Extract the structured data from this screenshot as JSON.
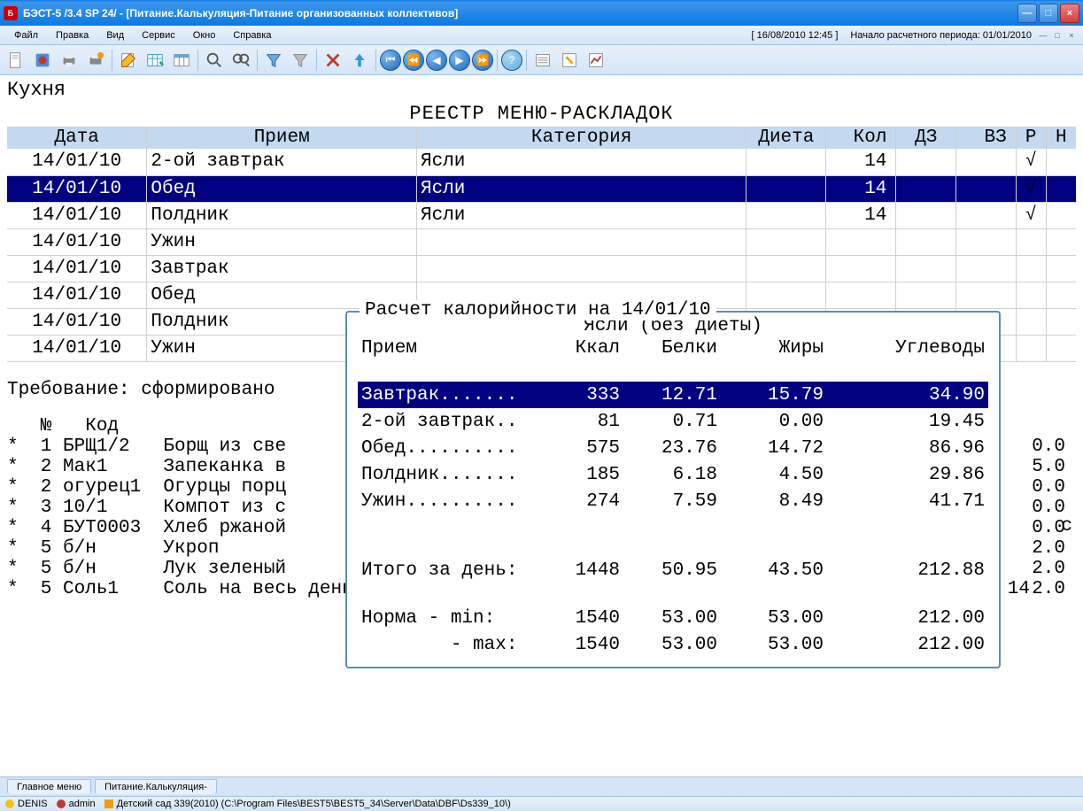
{
  "colors": {
    "titlebar_top": "#0a7ae5",
    "titlebar_mid": "#3d95eb",
    "menubar_top": "#e8f1fb",
    "menubar_bot": "#d4e5f7",
    "border": "#9cc3e8",
    "header_bg": "#c3d9ef",
    "selected_bg": "#000080",
    "selected_fg": "#ffffff",
    "popup_border": "#5a8cc0"
  },
  "window": {
    "title": "БЭСТ-5 /3.4 SP 24/ - [Питание.Калькуляция-Питание организованных коллективов]"
  },
  "menu": {
    "items": [
      "Файл",
      "Правка",
      "Вид",
      "Сервис",
      "Окно",
      "Справка"
    ],
    "clock": "[ 16/08/2010 12:45 ]",
    "period": "Начало расчетного периода: 01/01/2010"
  },
  "ws": {
    "kitchen": "Кухня",
    "registry": "РЕЕСТР МЕНЮ-РАСКЛАДОК",
    "columns": [
      "Дата",
      "Прием",
      "Категория",
      "Диета",
      "Кол",
      "ДЗ",
      "ВЗ",
      "Р",
      "Н"
    ],
    "rows": [
      {
        "date": "14/01/10",
        "meal": "2-ой завтрак",
        "cat": "Ясли",
        "diet": "",
        "qty": "14",
        "dz": "",
        "vz": "",
        "r": "√",
        "n": "",
        "sel": false
      },
      {
        "date": "14/01/10",
        "meal": "Обед",
        "cat": "Ясли",
        "diet": "",
        "qty": "14",
        "dz": "",
        "vz": "",
        "r": "√",
        "n": "",
        "sel": true
      },
      {
        "date": "14/01/10",
        "meal": "Полдник",
        "cat": "Ясли",
        "diet": "",
        "qty": "14",
        "dz": "",
        "vz": "",
        "r": "√",
        "n": "",
        "sel": false
      },
      {
        "date": "14/01/10",
        "meal": "Ужин",
        "cat": "",
        "diet": "",
        "qty": "",
        "dz": "",
        "vz": "",
        "r": "",
        "n": "",
        "sel": false
      },
      {
        "date": "14/01/10",
        "meal": "Завтрак",
        "cat": "",
        "diet": "",
        "qty": "",
        "dz": "",
        "vz": "",
        "r": "",
        "n": "",
        "sel": false
      },
      {
        "date": "14/01/10",
        "meal": "Обед",
        "cat": "",
        "diet": "",
        "qty": "",
        "dz": "",
        "vz": "",
        "r": "",
        "n": "",
        "sel": false
      },
      {
        "date": "14/01/10",
        "meal": "Полдник",
        "cat": "",
        "diet": "",
        "qty": "",
        "dz": "",
        "vz": "",
        "r": "",
        "n": "",
        "sel": false
      },
      {
        "date": "14/01/10",
        "meal": "Ужин",
        "cat": "",
        "diet": "",
        "qty": "",
        "dz": "",
        "vz": "",
        "r": "",
        "n": "",
        "sel": false
      }
    ],
    "requirement": "Требование: сформировано",
    "ing_header": "   №   Код",
    "ingredients": [
      {
        "mark": "*",
        "n": "1",
        "code": "БРЩ1/2",
        "name": "Борщ из све",
        "qty": "",
        "unit": "0.0",
        "col": "с"
      },
      {
        "mark": "*",
        "n": "2",
        "code": "Мак1",
        "name": "Запеканка в",
        "qty": "",
        "unit": "5.0",
        "col": ""
      },
      {
        "mark": "*",
        "n": "2",
        "code": "огурец1",
        "name": "Огурцы порц",
        "qty": "",
        "unit": "0.0",
        "col": ""
      },
      {
        "mark": "*",
        "n": "3",
        "code": "10/1",
        "name": "Компот из с",
        "qty": "",
        "unit": "0.0",
        "col": ""
      },
      {
        "mark": "*",
        "n": "4",
        "code": "БУТ0003",
        "name": "Хлеб ржаной",
        "qty": "",
        "unit": "0.0",
        "col": ""
      },
      {
        "mark": "*",
        "n": "5",
        "code": "б/н",
        "name": "Укроп",
        "qty": "",
        "unit": "2.0",
        "col": ""
      },
      {
        "mark": "*",
        "n": "5",
        "code": "б/н",
        "name": "Лук зеленый",
        "qty": "",
        "unit": "2.0",
        "col": ""
      },
      {
        "mark": "*",
        "n": "5",
        "code": "Соль1",
        "name": "Соль на весь день",
        "qty": "14",
        "unit": "2.0",
        "col": ""
      }
    ]
  },
  "calc": {
    "title": "Расчет калорийности на 14/01/10",
    "subtitle": "Ясли (без диеты)",
    "cols": [
      "Прием",
      "Ккал",
      "Белки",
      "Жиры",
      "Углеводы"
    ],
    "rows": [
      {
        "name": "Завтрак.......",
        "kcal": "333",
        "prot": "12.71",
        "fat": "15.79",
        "carb": "34.90",
        "sel": true
      },
      {
        "name": "2-ой завтрак..",
        "kcal": "81",
        "prot": "0.71",
        "fat": "0.00",
        "carb": "19.45",
        "sel": false
      },
      {
        "name": "Обед..........",
        "kcal": "575",
        "prot": "23.76",
        "fat": "14.72",
        "carb": "86.96",
        "sel": false
      },
      {
        "name": "Полдник.......",
        "kcal": "185",
        "prot": "6.18",
        "fat": "4.50",
        "carb": "29.86",
        "sel": false
      },
      {
        "name": "Ужин..........",
        "kcal": "274",
        "prot": "7.59",
        "fat": "8.49",
        "carb": "41.71",
        "sel": false
      }
    ],
    "total_label": "Итого за день:",
    "total": {
      "kcal": "1448",
      "prot": "50.95",
      "fat": "43.50",
      "carb": "212.88"
    },
    "norm_min_label": "Норма   - min:",
    "norm_max_label": "        - max:",
    "norm_min": {
      "kcal": "1540",
      "prot": "53.00",
      "fat": "53.00",
      "carb": "212.00"
    },
    "norm_max": {
      "kcal": "1540",
      "prot": "53.00",
      "fat": "53.00",
      "carb": "212.00"
    }
  },
  "tabs": [
    "Главное меню",
    "Питание.Калькуляция-"
  ],
  "status": {
    "user1": "DENIS",
    "user2": "admin",
    "path": "Детский сад 339(2010) (C:\\Program Files\\BEST5\\BEST5_34\\Server\\Data\\DBF\\Ds339_10\\)"
  }
}
